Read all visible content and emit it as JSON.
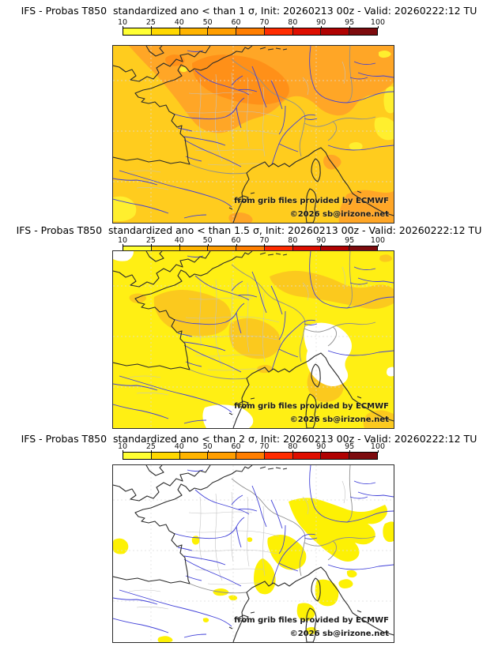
{
  "colors": {
    "page_bg": "#ffffff",
    "coast": "#2b2b2b",
    "river": "#4040d8",
    "boundary": "#8f8f8f",
    "mesh": "#c3c3c3",
    "graticule": "#dddddd",
    "map_border": "#2a2a2a",
    "title_text": "#000000",
    "note_text": "#1a1a1a"
  },
  "colorbar": {
    "tick_labels": [
      "10",
      "25",
      "40",
      "50",
      "60",
      "70",
      "80",
      "90",
      "95",
      "100"
    ],
    "segment_colors": [
      "#ffff33",
      "#ffd800",
      "#ffb400",
      "#ff9e00",
      "#ff7e00",
      "#ff2c00",
      "#de0e00",
      "#b00202",
      "#7d0b0e"
    ]
  },
  "panels": [
    {
      "title": "IFS - Probas T850  standardized ano < than 1 σ, Init: 20260213 00z - Valid: 20260222:12 TU",
      "attribution": "from grib files provided by ECMWF",
      "copyright": "©2026 sb@irizone.net",
      "map": {
        "base": "#ffcc1e",
        "orange": "#ffa626",
        "dark_orange": "#ff9018",
        "yellow": "#ffef2e"
      }
    },
    {
      "title": "IFS - Probas T850  standardized ano < than 1.5 σ, Init: 20260213 00z - Valid: 20260222:12 TU",
      "attribution": "from grib files provided by ECMWF",
      "copyright": "©2026 sb@irizone.net",
      "map": {
        "base": "#ffef14",
        "gold": "#fbc91e",
        "white": "#ffffff"
      }
    },
    {
      "title": "IFS - Probas T850  standardized ano < than 2 σ, Init: 20260213 00z - Valid: 20260222:12 TU",
      "attribution": "from grib files provided by ECMWF",
      "copyright": "©2026 sb@irizone.net",
      "map": {
        "base": "#ffffff",
        "yellow": "#fdf104"
      }
    }
  ]
}
